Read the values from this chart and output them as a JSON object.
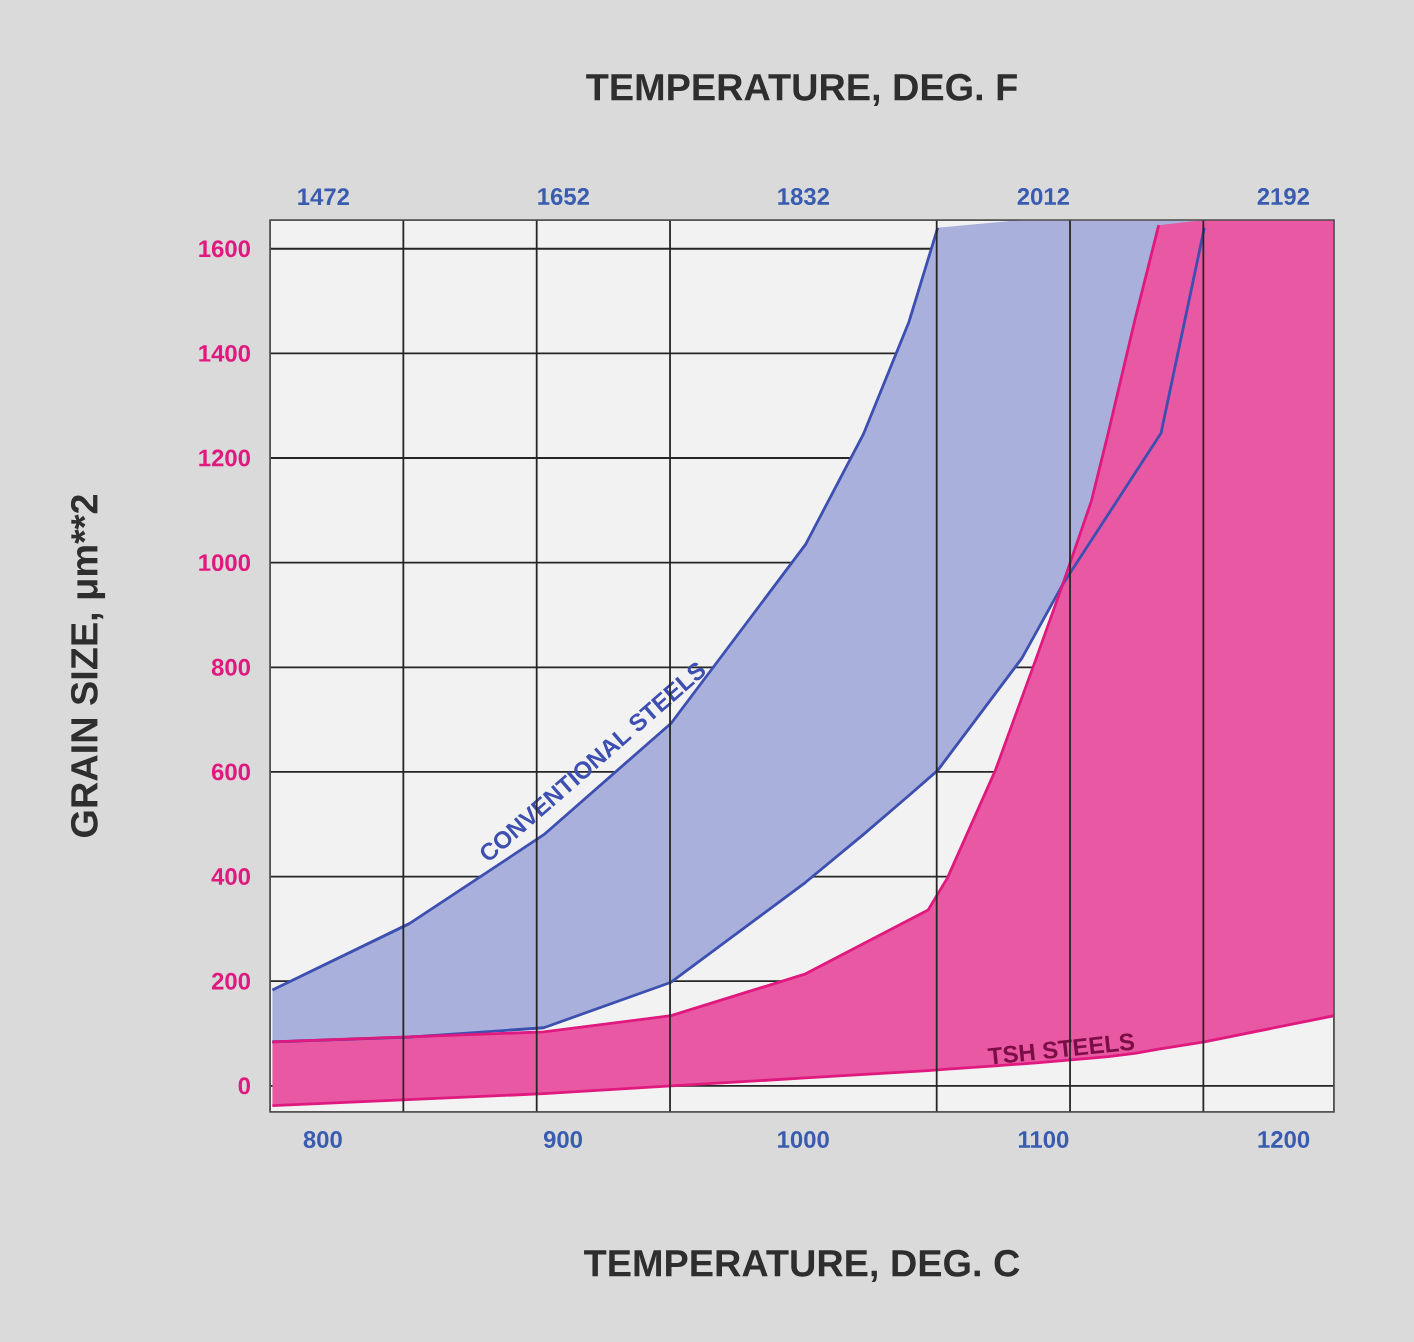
{
  "chart_data": {
    "type": "line",
    "xlabel": "TEMPERATURE, DEG. C",
    "x2label": "TEMPERATURE, DEG. F",
    "ylabel": "GRAIN SIZE,  μm**2",
    "xlim": [
      778,
      1221
    ],
    "xticks": [
      800,
      900,
      1000,
      1100,
      1200
    ],
    "x2lim": [
      1432,
      2230
    ],
    "x2ticks": [
      1472,
      {
        "value": 1532,
        "label": null
      },
      {
        "value": 1632,
        "label": null
      },
      1652,
      {
        "value": 1732,
        "label": null
      },
      1832,
      {
        "value": 1932,
        "label": null
      },
      2012,
      {
        "value": 2032,
        "label": null
      },
      {
        "value": 2132,
        "label": null
      },
      2192
    ],
    "ylim": [
      -50,
      1655
    ],
    "yticks": [
      0,
      200,
      400,
      600,
      800,
      1000,
      1200,
      1400,
      1600
    ],
    "grid": true,
    "series": [
      {
        "name": "CONVENTIONAL STEELS",
        "color": "#3d4fb0",
        "x": [
          779,
          836,
          892,
          945,
          1001,
          1025,
          1044,
          1056,
          1091,
          1108,
          1149,
          1167
        ],
        "values": [
          183,
          310,
          480,
          693,
          1035,
          1245,
          1460,
          1640,
          null,
          null,
          null,
          null
        ],
        "lower": [
          84,
          93,
          111,
          198,
          389,
          480,
          555,
          603,
          817,
          958,
          1248,
          1640
        ],
        "upper": [
          183,
          310,
          480,
          693,
          1035,
          1245,
          1460,
          1640,
          1655,
          1655,
          1655,
          1655
        ]
      },
      {
        "color": "#3d4fb0",
        "x": [
          779,
          836,
          892,
          945,
          1001,
          1025,
          1044,
          1056,
          1091,
          1108,
          1149,
          1167
        ],
        "values": [
          84,
          93,
          111,
          198,
          389,
          480,
          555,
          603,
          817,
          958,
          1248,
          1640
        ]
      },
      {
        "color": "#e0197f",
        "x": [
          779,
          892,
          945,
          1001,
          1052,
          1060,
          1080,
          1097,
          1108,
          1120,
          1127,
          1138,
          1148,
          1167,
          1221
        ],
        "values": [
          84,
          103,
          134,
          214,
          336,
          397,
          603,
          817,
          958,
          1118,
          1248,
          1462,
          1645,
          null,
          null
        ],
        "lower": [
          -38,
          -15,
          0,
          15,
          29,
          32,
          38,
          44,
          48,
          53,
          56,
          62,
          70,
          84,
          134
        ],
        "upper": [
          84,
          103,
          134,
          214,
          336,
          397,
          603,
          817,
          958,
          1118,
          1248,
          1462,
          1645,
          1655,
          1655
        ]
      },
      {
        "name": "TSH STEELS",
        "color": "#e0197f",
        "x": [
          779,
          892,
          945,
          1001,
          1052,
          1060,
          1080,
          1097,
          1108,
          1120,
          1127,
          1138,
          1148,
          1167,
          1221
        ],
        "values": [
          -38,
          -15,
          0,
          15,
          29,
          32,
          38,
          44,
          48,
          53,
          56,
          62,
          70,
          84,
          134
        ]
      }
    ]
  }
}
